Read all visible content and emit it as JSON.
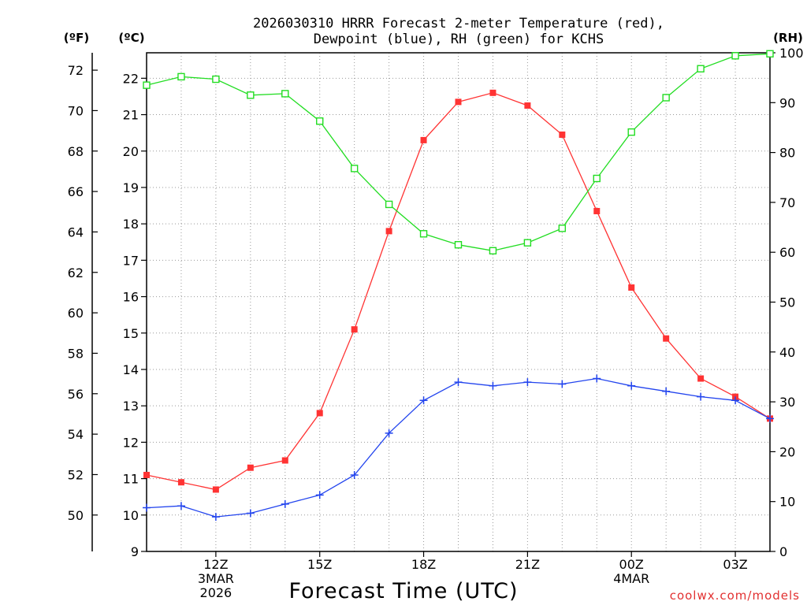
{
  "chart_data": {
    "type": "line",
    "title_line1": "2026030310 HRRR Forecast 2-meter Temperature (red),",
    "title_line2": "Dewpoint (blue), RH (green) for KCHS",
    "xlabel": "Forecast Time (UTC)",
    "credit": "coolwx.com/models",
    "unit_f": "(ºF)",
    "unit_c": "(ºC)",
    "unit_rh": "(RH)",
    "x_hours": [
      10,
      11,
      12,
      13,
      14,
      15,
      16,
      17,
      18,
      19,
      20,
      21,
      22,
      23,
      24,
      25,
      26,
      27,
      28
    ],
    "xlim": [
      10,
      28
    ],
    "ylim_c": [
      9,
      22.7
    ],
    "ylim_rh": [
      0,
      100
    ],
    "x_ticks": [
      {
        "hour": 12,
        "lines": [
          "12Z",
          "3MAR",
          "2026"
        ]
      },
      {
        "hour": 15,
        "lines": [
          "15Z"
        ]
      },
      {
        "hour": 18,
        "lines": [
          "18Z"
        ]
      },
      {
        "hour": 21,
        "lines": [
          "21Z"
        ]
      },
      {
        "hour": 24,
        "lines": [
          "00Z",
          "4MAR"
        ]
      },
      {
        "hour": 27,
        "lines": [
          "03Z"
        ]
      }
    ],
    "y_ticks_c": [
      "9",
      "10",
      "11",
      "12",
      "13",
      "14",
      "15",
      "16",
      "17",
      "18",
      "19",
      "20",
      "21",
      "22"
    ],
    "y_ticks_f": [
      "50",
      "52",
      "54",
      "56",
      "58",
      "60",
      "62",
      "64",
      "66",
      "68",
      "70",
      "72"
    ],
    "y_ticks_rh": [
      "0",
      "10",
      "20",
      "30",
      "40",
      "50",
      "60",
      "70",
      "80",
      "90",
      "100"
    ],
    "colors": {
      "temperature": "#ff3333",
      "dewpoint": "#2244ee",
      "rh": "#22dd22",
      "credit": "#e23030",
      "grid": "#999999"
    },
    "series": [
      {
        "name": "Temperature",
        "axis": "c",
        "marker": "square",
        "values": [
          11.1,
          10.9,
          10.7,
          11.3,
          11.5,
          12.8,
          15.1,
          17.8,
          20.3,
          21.35,
          21.6,
          21.25,
          20.45,
          18.35,
          16.25,
          14.85,
          13.75,
          13.25,
          12.65
        ]
      },
      {
        "name": "Dewpoint",
        "axis": "c",
        "marker": "plus",
        "values": [
          10.2,
          10.25,
          9.95,
          10.05,
          10.3,
          10.55,
          11.1,
          12.25,
          13.15,
          13.65,
          13.55,
          13.65,
          13.6,
          13.75,
          13.55,
          13.4,
          13.25,
          13.15,
          12.65
        ]
      },
      {
        "name": "RH",
        "axis": "rh",
        "marker": "open-square",
        "values": [
          93.5,
          95.2,
          94.7,
          91.5,
          91.8,
          86.3,
          76.8,
          69.6,
          63.7,
          61.5,
          60.3,
          61.9,
          64.8,
          74.8,
          84.1,
          91.0,
          96.8,
          99.4,
          99.8
        ]
      }
    ]
  }
}
